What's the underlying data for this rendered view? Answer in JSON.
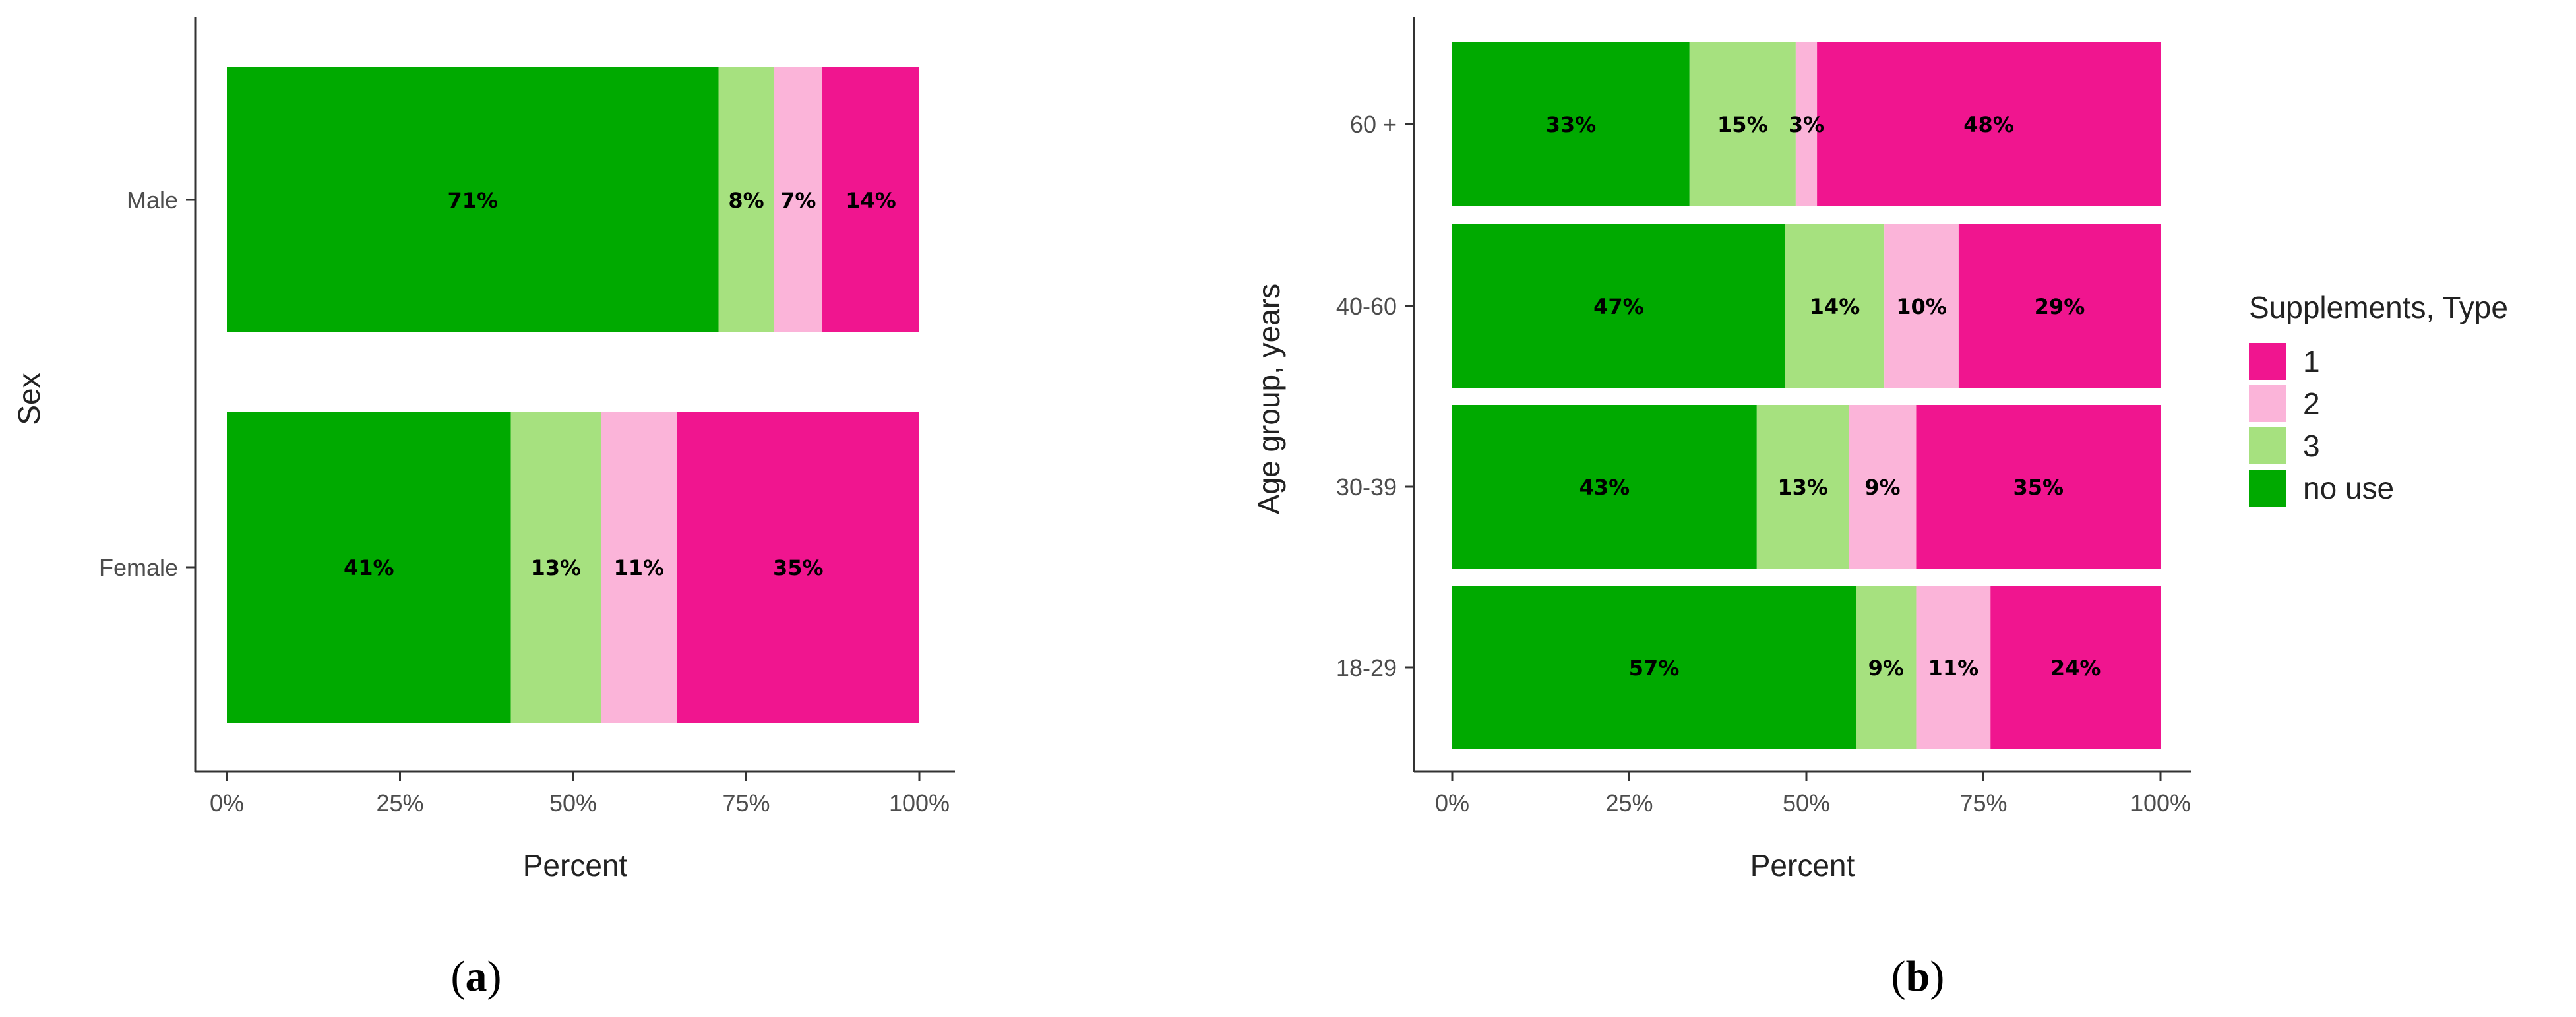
{
  "colors": {
    "1": "#f0158f",
    "2": "#fbb4d9",
    "3": "#a6e17f",
    "no use": "#00aa00"
  },
  "chart_data": [
    {
      "type": "bar",
      "orientation": "horizontal",
      "stacked": true,
      "panel_label": "a",
      "xlabel": "Percent",
      "ylabel": "Sex",
      "xlim": [
        0,
        100
      ],
      "x_ticks": [
        "0%",
        "25%",
        "50%",
        "75%",
        "100%"
      ],
      "categories": [
        "Male",
        "Female"
      ],
      "series": [
        {
          "name": "no use",
          "values": [
            71,
            41
          ]
        },
        {
          "name": "3",
          "values": [
            8,
            13
          ]
        },
        {
          "name": "2",
          "values": [
            7,
            11
          ]
        },
        {
          "name": "1",
          "values": [
            14,
            35
          ]
        }
      ],
      "bar_labels": [
        [
          "71%",
          "8%",
          "7%",
          "14%"
        ],
        [
          "41%",
          "13%",
          "11%",
          "35%"
        ]
      ],
      "legend": null,
      "grid": false
    },
    {
      "type": "bar",
      "orientation": "horizontal",
      "stacked": true,
      "panel_label": "b",
      "xlabel": "Percent",
      "ylabel": "Age group, years",
      "xlim": [
        0,
        100
      ],
      "x_ticks": [
        "0%",
        "25%",
        "50%",
        "75%",
        "100%"
      ],
      "categories": [
        "60 +",
        "40-60",
        "30-39",
        "18-29"
      ],
      "series": [
        {
          "name": "no use",
          "values": [
            33.5,
            47,
            43,
            57
          ]
        },
        {
          "name": "3",
          "values": [
            15,
            14,
            13,
            8.5
          ]
        },
        {
          "name": "2",
          "values": [
            3,
            10.5,
            9.5,
            10.5
          ]
        },
        {
          "name": "1",
          "values": [
            48.5,
            28.5,
            34.5,
            24
          ]
        }
      ],
      "bar_labels": [
        [
          "33%",
          "15%",
          "3%",
          "48%"
        ],
        [
          "47%",
          "14%",
          "10%",
          "29%"
        ],
        [
          "43%",
          "13%",
          "9%",
          "35%"
        ],
        [
          "57%",
          "9%",
          "11%",
          "24%"
        ]
      ],
      "legend": {
        "title": "Supplements, Type",
        "position": "right",
        "entries": [
          "1",
          "2",
          "3",
          "no use"
        ]
      },
      "grid": false
    }
  ]
}
